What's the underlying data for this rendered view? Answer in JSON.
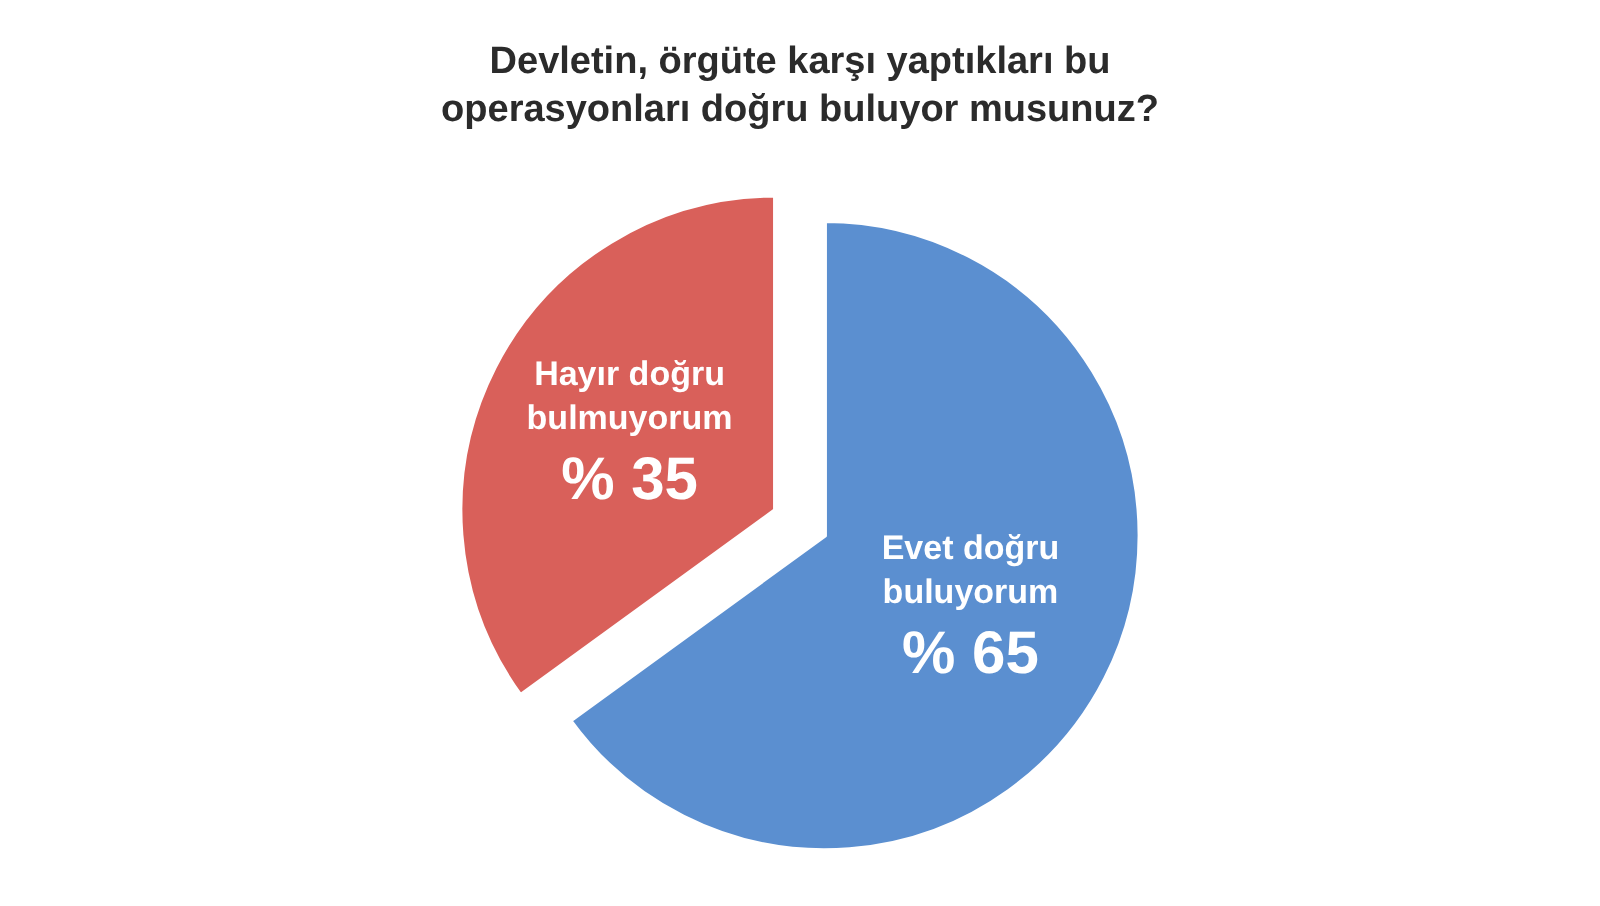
{
  "chart_data": {
    "type": "pie",
    "title": "Devletin, örgüte karşı yaptıkları bu\noperasyonları doğru buluyor musunuz?",
    "categories": [
      "Evet doğru buluyorum",
      "Hayır doğru bulmuyorum"
    ],
    "values": [
      65,
      35
    ],
    "colors": [
      "#5b8fd0",
      "#d9605a"
    ],
    "value_labels": [
      "% 65",
      "% 35"
    ]
  }
}
